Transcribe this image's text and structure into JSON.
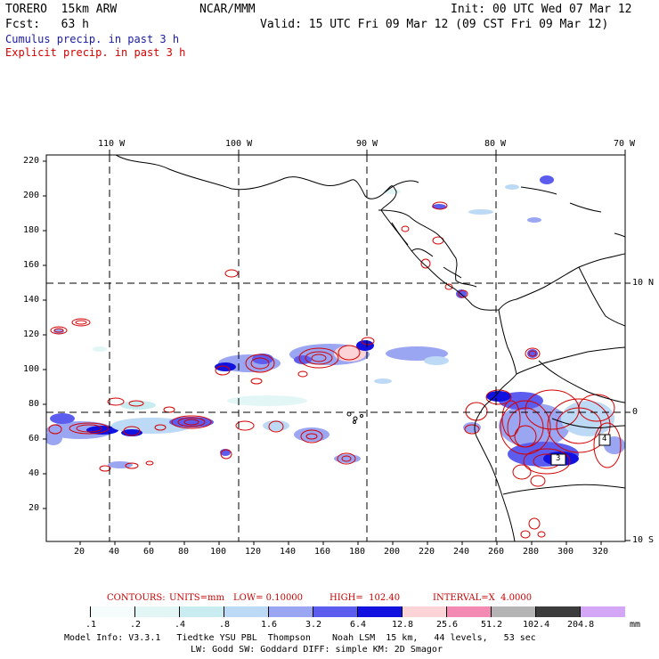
{
  "header": {
    "model": "TORERO  15km ARW",
    "org": "NCAR/MMM",
    "init": "Init: 00 UTC Wed 07 Mar 12",
    "fcst": "Fcst:   63 h",
    "valid": "Valid: 15 UTC Fri 09 Mar 12 (09 CST Fri 09 Mar 12)",
    "cumulus": "Cumulus precip. in past 3 h",
    "explicit": "Explicit precip. in past 3 h",
    "cumulus_color": "#1a1aa6",
    "explicit_color": "#d40000"
  },
  "axes": {
    "lon_labels": [
      "110 W",
      "100 W",
      "90 W",
      "80 W",
      "70 W"
    ],
    "lat_labels": [
      "10 N",
      "0",
      "10 S"
    ],
    "y_ticks": [
      "220",
      "200",
      "180",
      "160",
      "140",
      "120",
      "100",
      "80",
      "60",
      "40",
      "20"
    ],
    "x_ticks": [
      "20",
      "40",
      "60",
      "80",
      "100",
      "120",
      "140",
      "160",
      "180",
      "200",
      "220",
      "240",
      "260",
      "280",
      "300",
      "320"
    ]
  },
  "contours": {
    "label": "CONTOURS:",
    "units": "UNITS=mm",
    "low": "LOW= 0.10000",
    "high": "HIGH=  102.40",
    "interval": "INTERVAL=X  4.0000"
  },
  "colorbar": {
    "labels": [
      ".1",
      ".2",
      ".4",
      ".8",
      "1.6",
      "3.2",
      "6.4",
      "12.8",
      "25.6",
      "51.2",
      "102.4",
      "204.8"
    ],
    "unit": "mm",
    "colors": [
      "#ffffff",
      "#f4fcfc",
      "#e2f6f6",
      "#c9ecf0",
      "#bcd9f5",
      "#9aa6f2",
      "#5c5cee",
      "#1212e0",
      "#fcd4d8",
      "#f38ab4",
      "#b4b4b4",
      "#3c3c3c",
      "#d4a6f6"
    ]
  },
  "footer": {
    "line1": "Model Info: V3.3.1   Tiedtke YSU PBL  Thompson    Noah LSM  15 km,   44 levels,   53 sec",
    "line2": "LW: Godd SW: Goddard DIFF: simple KM: 2D Smagor"
  },
  "map_labels": {
    "box4": "4",
    "box3": "3"
  }
}
